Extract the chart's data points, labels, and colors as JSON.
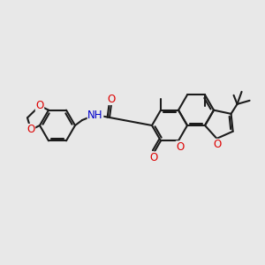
{
  "bg_color": "#e8e8e8",
  "bond_color": "#1c1c1c",
  "bond_lw": 1.5,
  "o_color": "#dd0000",
  "n_color": "#0000cc",
  "font_size": 8.5,
  "fig_size": [
    3.0,
    3.0
  ],
  "dpi": 100,
  "xlim": [
    0,
    300
  ],
  "ylim": [
    0,
    300
  ]
}
